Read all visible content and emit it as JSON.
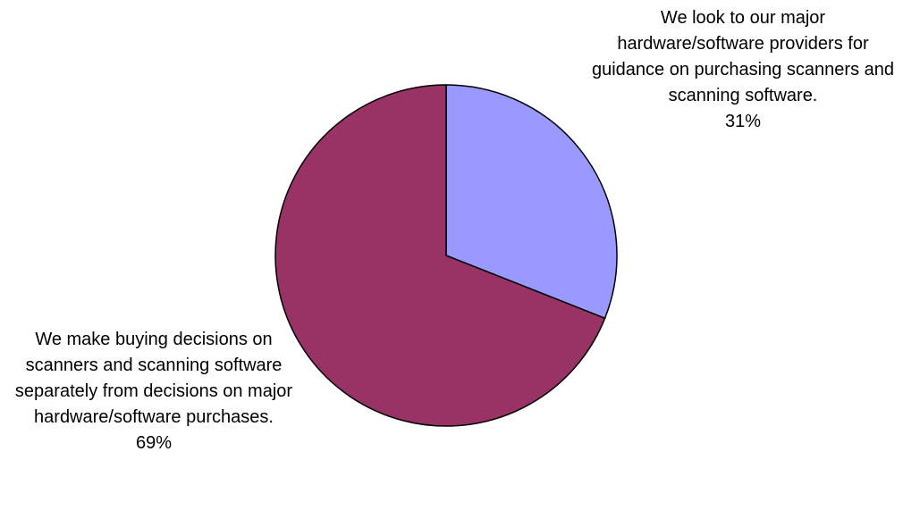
{
  "chart_data": {
    "type": "pie",
    "title": "",
    "legend": "none",
    "start_angle_deg": 0,
    "direction": "clockwise",
    "slices": [
      {
        "label": "We look to our major hardware/software providers for guidance on purchasing scanners and scanning software.",
        "value": 31,
        "percent_label": "31%",
        "color": "#9999ff"
      },
      {
        "label": "We make buying decisions on scanners and scanning software separately from decisions on major hardware/software purchases.",
        "value": 69,
        "percent_label": "69%",
        "color": "#993366"
      }
    ]
  }
}
